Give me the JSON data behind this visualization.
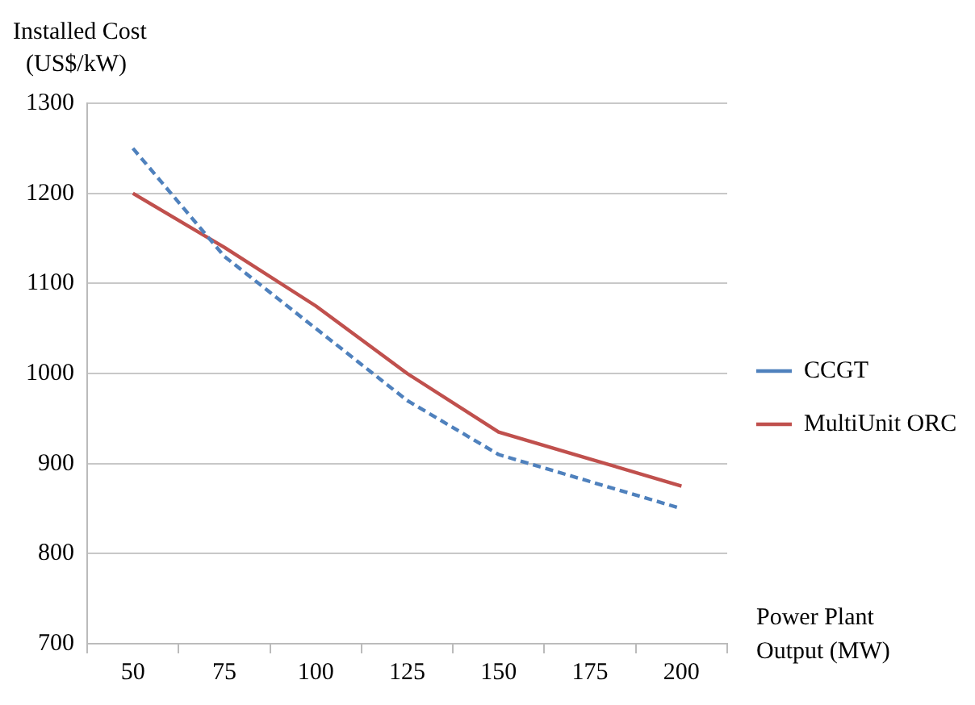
{
  "chart_data": {
    "type": "line",
    "ylabel": "Installed Cost\n(US$/kW)",
    "xlabel": "Power Plant\nOutput (MW)",
    "categories": [
      "50",
      "75",
      "100",
      "125",
      "150",
      "175",
      "200"
    ],
    "series": [
      {
        "name": "CCGT",
        "color": "#4f81bd",
        "line_style": "dashed",
        "values": [
          1250,
          1130,
          1050,
          970,
          910,
          880,
          850
        ]
      },
      {
        "name": "MultiUnit ORC",
        "color": "#c0504d",
        "line_style": "solid",
        "values": [
          1200,
          1140,
          1075,
          1000,
          935,
          905,
          875
        ]
      }
    ],
    "ylim": [
      700,
      1300
    ],
    "yticks": [
      700,
      800,
      900,
      1000,
      1100,
      1200,
      1300
    ],
    "grid": "y",
    "legend": "right",
    "marker": "none"
  }
}
